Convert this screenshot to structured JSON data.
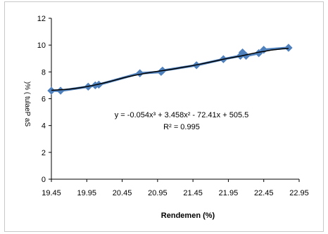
{
  "chart_data": {
    "type": "scatter",
    "title": "",
    "xlabel": "Rendemen (%)",
    "ylabel": ")% ( tulaeP aS",
    "xlim": [
      19.45,
      22.95
    ],
    "ylim": [
      0,
      12
    ],
    "x_ticks": [
      "19.45",
      "19.95",
      "20.45",
      "20.95",
      "21.45",
      "21.95",
      "22.45",
      "22.95"
    ],
    "y_ticks": [
      "0",
      "2",
      "4",
      "6",
      "8",
      "10",
      "12"
    ],
    "grid": false,
    "legend": "none",
    "series": [
      {
        "marker_color": "#4f81bd",
        "line_color": "#4f81bd",
        "points": [
          {
            "x": 19.45,
            "y": 6.6
          },
          {
            "x": 19.58,
            "y": 6.6
          },
          {
            "x": 19.97,
            "y": 6.9
          },
          {
            "x": 20.07,
            "y": 7.0
          },
          {
            "x": 20.12,
            "y": 7.05
          },
          {
            "x": 20.7,
            "y": 7.9
          },
          {
            "x": 21.0,
            "y": 8.0
          },
          {
            "x": 21.02,
            "y": 8.1
          },
          {
            "x": 21.5,
            "y": 8.5
          },
          {
            "x": 21.88,
            "y": 8.95
          },
          {
            "x": 22.12,
            "y": 9.2
          },
          {
            "x": 22.15,
            "y": 9.45
          },
          {
            "x": 22.2,
            "y": 9.2
          },
          {
            "x": 22.38,
            "y": 9.4
          },
          {
            "x": 22.45,
            "y": 9.65
          },
          {
            "x": 22.8,
            "y": 9.8
          }
        ]
      }
    ],
    "trendline": {
      "color": "#000000",
      "equation_line1": "y = -0.054x³ + 3.458x² - 72.41x + 505.5",
      "equation_line2": "R² = 0.995"
    }
  }
}
